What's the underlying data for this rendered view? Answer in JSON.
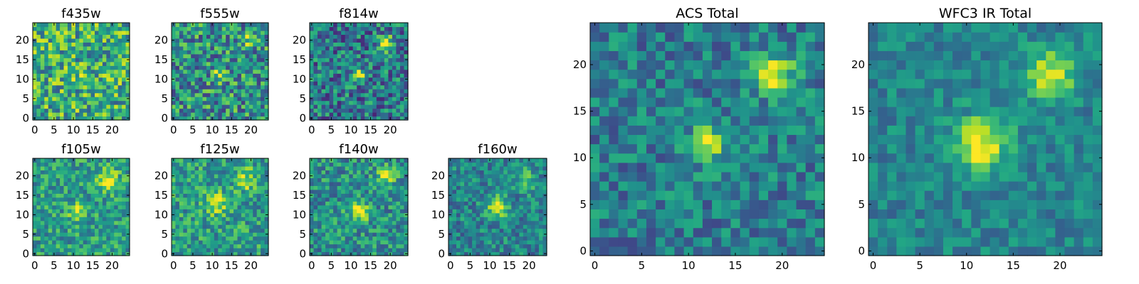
{
  "chart_data": [
    {
      "type": "heatmap",
      "title": "f435w",
      "xticks": [
        0,
        5,
        10,
        15,
        20
      ],
      "yticks": [
        0,
        5,
        10,
        15,
        20
      ],
      "xlim": [
        0,
        24
      ],
      "ylim": [
        0,
        24
      ],
      "colormap": "viridis",
      "seed": 11,
      "blobs": [
        {
          "x": 12,
          "y": 11,
          "a": 0.1,
          "s": 1.5
        }
      ],
      "noise": 0.55,
      "base": 0.62
    },
    {
      "type": "heatmap",
      "title": "f555w",
      "xticks": [
        0,
        5,
        10,
        15,
        20
      ],
      "yticks": [
        0,
        5,
        10,
        15,
        20
      ],
      "xlim": [
        0,
        24
      ],
      "ylim": [
        0,
        24
      ],
      "colormap": "viridis",
      "seed": 23,
      "blobs": [
        {
          "x": 12,
          "y": 11,
          "a": 0.4,
          "s": 1.2
        },
        {
          "x": 19,
          "y": 20,
          "a": 0.25,
          "s": 1.5
        }
      ],
      "noise": 0.55,
      "base": 0.5
    },
    {
      "type": "heatmap",
      "title": "f814w",
      "xticks": [
        0,
        5,
        10,
        15,
        20
      ],
      "yticks": [
        0,
        5,
        10,
        15,
        20
      ],
      "xlim": [
        0,
        24
      ],
      "ylim": [
        0,
        24
      ],
      "colormap": "viridis",
      "seed": 37,
      "blobs": [
        {
          "x": 12,
          "y": 11,
          "a": 0.5,
          "s": 1.2
        },
        {
          "x": 19,
          "y": 19,
          "a": 0.6,
          "s": 1.4
        }
      ],
      "noise": 0.5,
      "base": 0.4
    },
    {
      "type": "heatmap",
      "title": "f105w",
      "xticks": [
        0,
        5,
        10,
        15,
        20
      ],
      "yticks": [
        0,
        5,
        10,
        15,
        20
      ],
      "xlim": [
        0,
        24
      ],
      "ylim": [
        0,
        24
      ],
      "colormap": "viridis",
      "seed": 41,
      "blobs": [
        {
          "x": 11,
          "y": 11,
          "a": 0.35,
          "s": 1.5
        },
        {
          "x": 19,
          "y": 19,
          "a": 0.45,
          "s": 1.8
        }
      ],
      "noise": 0.38,
      "base": 0.55
    },
    {
      "type": "heatmap",
      "title": "f125w",
      "xticks": [
        0,
        5,
        10,
        15,
        20
      ],
      "yticks": [
        0,
        5,
        10,
        15,
        20
      ],
      "xlim": [
        0,
        24
      ],
      "ylim": [
        0,
        24
      ],
      "colormap": "viridis",
      "seed": 53,
      "blobs": [
        {
          "x": 11,
          "y": 13,
          "a": 0.35,
          "s": 2
        },
        {
          "x": 19,
          "y": 19,
          "a": 0.3,
          "s": 2
        }
      ],
      "noise": 0.4,
      "base": 0.55
    },
    {
      "type": "heatmap",
      "title": "f140w",
      "xticks": [
        0,
        5,
        10,
        15,
        20
      ],
      "yticks": [
        0,
        5,
        10,
        15,
        20
      ],
      "xlim": [
        0,
        24
      ],
      "ylim": [
        0,
        24
      ],
      "colormap": "viridis",
      "seed": 67,
      "blobs": [
        {
          "x": 12,
          "y": 11,
          "a": 0.45,
          "s": 1.8
        },
        {
          "x": 19,
          "y": 20,
          "a": 0.45,
          "s": 1.6
        }
      ],
      "noise": 0.4,
      "base": 0.5
    },
    {
      "type": "heatmap",
      "title": "f160w",
      "xticks": [
        0,
        5,
        10,
        15,
        20
      ],
      "yticks": [
        0,
        5,
        10,
        15,
        20
      ],
      "xlim": [
        0,
        24
      ],
      "ylim": [
        0,
        24
      ],
      "colormap": "viridis",
      "seed": 79,
      "blobs": [
        {
          "x": 12,
          "y": 12,
          "a": 0.55,
          "s": 1.8
        },
        {
          "x": 19,
          "y": 19,
          "a": 0.25,
          "s": 2
        }
      ],
      "noise": 0.35,
      "base": 0.45
    },
    {
      "type": "heatmap",
      "title": "ACS Total",
      "xticks": [
        0,
        5,
        10,
        15,
        20
      ],
      "yticks": [
        0,
        5,
        10,
        15,
        20
      ],
      "xlim": [
        0,
        24
      ],
      "ylim": [
        0,
        24
      ],
      "colormap": "viridis",
      "seed": 97,
      "blobs": [
        {
          "x": 12,
          "y": 11.5,
          "a": 0.55,
          "s": 1.3
        },
        {
          "x": 19,
          "y": 19,
          "a": 0.6,
          "s": 1.5
        }
      ],
      "noise": 0.35,
      "base": 0.42
    },
    {
      "type": "heatmap",
      "title": "WFC3 IR Total",
      "xticks": [
        0,
        5,
        10,
        15,
        20
      ],
      "yticks": [
        0,
        5,
        10,
        15,
        20
      ],
      "xlim": [
        0,
        24
      ],
      "ylim": [
        0,
        24
      ],
      "colormap": "viridis",
      "seed": 113,
      "blobs": [
        {
          "x": 11.5,
          "y": 11.5,
          "a": 0.55,
          "s": 2
        },
        {
          "x": 19,
          "y": 19,
          "a": 0.5,
          "s": 1.8
        }
      ],
      "noise": 0.25,
      "base": 0.45
    }
  ]
}
